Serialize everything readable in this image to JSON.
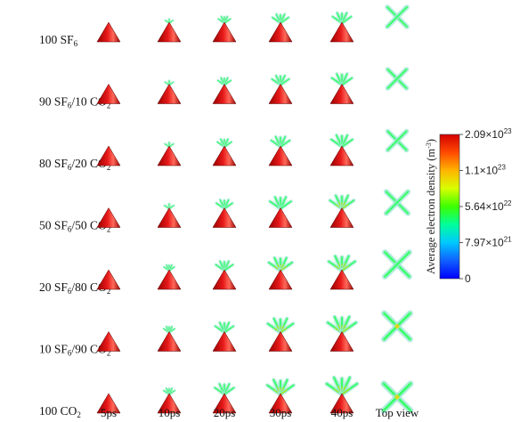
{
  "rows": [
    {
      "sf6": "100",
      "co2": "",
      "spread": [
        0.0,
        0.1,
        0.3,
        0.5,
        0.62
      ],
      "top": 0.55
    },
    {
      "sf6": "90",
      "co2": "10",
      "spread": [
        0.0,
        0.12,
        0.35,
        0.55,
        0.7
      ],
      "top": 0.5
    },
    {
      "sf6": "80",
      "co2": "20",
      "spread": [
        0.0,
        0.14,
        0.4,
        0.62,
        0.75
      ],
      "top": 0.5
    },
    {
      "sf6": "50",
      "co2": "50",
      "spread": [
        0.0,
        0.18,
        0.5,
        0.75,
        0.88
      ],
      "top": 0.68
    },
    {
      "sf6": "20",
      "co2": "80",
      "spread": [
        0.0,
        0.22,
        0.55,
        0.85,
        1.0
      ],
      "top": 0.85
    },
    {
      "sf6": "10",
      "co2": "90",
      "spread": [
        0.0,
        0.25,
        0.6,
        0.95,
        1.1
      ],
      "top": 0.95
    },
    {
      "sf6": "",
      "co2": "100",
      "spread": [
        0.0,
        0.25,
        0.65,
        1.0,
        1.2
      ],
      "top": 1.0
    }
  ],
  "labels": {
    "sf6_symbol": "SF",
    "sf6_sub": "6",
    "co2_symbol": "CO",
    "co2_sub": "2",
    "separator": "/"
  },
  "time_labels": [
    "5ps",
    "10ps",
    "20ps",
    "30ps",
    "40ps"
  ],
  "top_view_label": "Top view",
  "colorbar": {
    "title": "Average electron density (m",
    "title_sup": "-3",
    "title_close": ")",
    "ticks": [
      {
        "label": "2.09×10",
        "sup": "23"
      },
      {
        "label": "1.1×10",
        "sup": "23"
      },
      {
        "label": "5.64×10",
        "sup": "22"
      },
      {
        "label": "7.97×10",
        "sup": "21"
      },
      {
        "label": "0",
        "sup": ""
      }
    ],
    "colors": [
      "#d40000",
      "#ff4a00",
      "#ffb400",
      "#d8ff00",
      "#3cff00",
      "#00ff9c",
      "#00c8ff",
      "#1060ff",
      "#0000ff"
    ]
  },
  "colors": {
    "cone_dark": "#9a0000",
    "cone_mid": "#e81a1a",
    "cone_light": "#ff6a5a",
    "streamer_core": "#3aff6a",
    "streamer_edge": "#9fe8d6",
    "streamer_hot": "#ffd000"
  }
}
